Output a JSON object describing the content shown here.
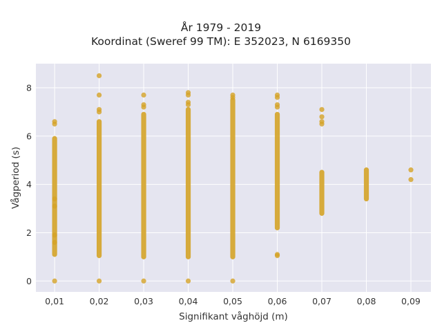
{
  "chart_data": {
    "type": "scatter",
    "title": "År 1979 - 2019",
    "subtitle": "Koordinat (Sweref 99 TM): E 352023, N 6169350",
    "xlabel": "Signifikant våghöjd (m)",
    "ylabel": "Vågperiod (s)",
    "x_ticks": [
      "0,01",
      "0,02",
      "0,03",
      "0,04",
      "0,05",
      "0,06",
      "0,07",
      "0,08",
      "0,09"
    ],
    "y_ticks": [
      "0",
      "2",
      "4",
      "6",
      "8"
    ],
    "xlim": [
      0.0058,
      0.0945
    ],
    "ylim": [
      -0.45,
      9.0
    ],
    "grid": true,
    "colors": {
      "points": "#d4a327",
      "plot_bg": "#e5e5f0",
      "grid": "#ffffff"
    },
    "series": [
      {
        "bands": [
          {
            "x": 0.01,
            "ymin": 1.1,
            "ymax": 5.9
          },
          {
            "x": 0.02,
            "ymin": 1.05,
            "ymax": 6.6
          },
          {
            "x": 0.03,
            "ymin": 1.0,
            "ymax": 6.9
          },
          {
            "x": 0.04,
            "ymin": 1.0,
            "ymax": 7.1
          },
          {
            "x": 0.05,
            "ymin": 1.0,
            "ymax": 7.5
          },
          {
            "x": 0.06,
            "ymin": 2.2,
            "ymax": 6.9
          },
          {
            "x": 0.07,
            "ymin": 2.8,
            "ymax": 4.5
          },
          {
            "x": 0.08,
            "ymin": 3.4,
            "ymax": 4.6
          }
        ],
        "points": [
          {
            "x": 0.01,
            "y": 0.0
          },
          {
            "x": 0.01,
            "y": 6.6
          },
          {
            "x": 0.01,
            "y": 6.5
          },
          {
            "x": 0.01,
            "y": 3.4
          },
          {
            "x": 0.01,
            "y": 3.1
          },
          {
            "x": 0.01,
            "y": 1.9
          },
          {
            "x": 0.01,
            "y": 1.6
          },
          {
            "x": 0.02,
            "y": 0.0
          },
          {
            "x": 0.02,
            "y": 8.5
          },
          {
            "x": 0.02,
            "y": 7.7
          },
          {
            "x": 0.02,
            "y": 7.1
          },
          {
            "x": 0.02,
            "y": 7.0
          },
          {
            "x": 0.03,
            "y": 0.0
          },
          {
            "x": 0.03,
            "y": 7.7
          },
          {
            "x": 0.03,
            "y": 7.3
          },
          {
            "x": 0.03,
            "y": 7.2
          },
          {
            "x": 0.04,
            "y": 0.0
          },
          {
            "x": 0.04,
            "y": 7.8
          },
          {
            "x": 0.04,
            "y": 7.7
          },
          {
            "x": 0.04,
            "y": 7.4
          },
          {
            "x": 0.04,
            "y": 7.3
          },
          {
            "x": 0.05,
            "y": 0.0
          },
          {
            "x": 0.05,
            "y": 7.7
          },
          {
            "x": 0.05,
            "y": 7.6
          },
          {
            "x": 0.06,
            "y": 7.7
          },
          {
            "x": 0.06,
            "y": 7.6
          },
          {
            "x": 0.06,
            "y": 7.3
          },
          {
            "x": 0.06,
            "y": 7.2
          },
          {
            "x": 0.06,
            "y": 1.1
          },
          {
            "x": 0.06,
            "y": 1.05
          },
          {
            "x": 0.07,
            "y": 7.1
          },
          {
            "x": 0.07,
            "y": 6.8
          },
          {
            "x": 0.07,
            "y": 6.6
          },
          {
            "x": 0.07,
            "y": 6.5
          },
          {
            "x": 0.09,
            "y": 4.6
          },
          {
            "x": 0.09,
            "y": 4.2
          }
        ]
      }
    ]
  }
}
